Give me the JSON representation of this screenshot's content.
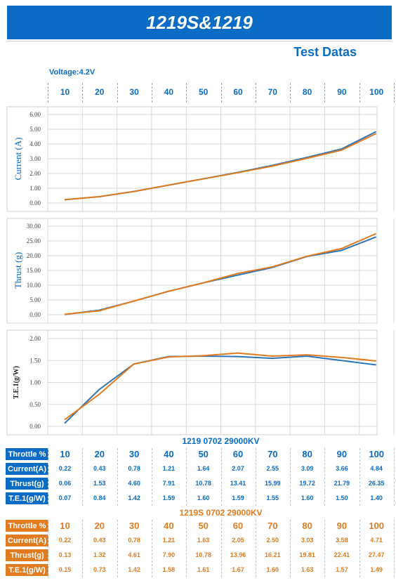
{
  "title": "1219S&1219",
  "subtitle": "Test Datas",
  "voltage_label": "Voltage:4.2V",
  "colors": {
    "accent": "#0a6cc4",
    "series1": "#2e75b6",
    "series2": "#e07b20",
    "grid": "#d9d9d9"
  },
  "throttle_ticks": [
    "10",
    "20",
    "30",
    "40",
    "50",
    "60",
    "70",
    "80",
    "90",
    "100"
  ],
  "chart_data": [
    {
      "type": "line",
      "ylabel": "Current (A)",
      "yticks": [
        "6.00",
        "5.00",
        "4.00",
        "3.00",
        "2.00",
        "1.00",
        "0.00"
      ],
      "ylim": [
        0,
        6
      ],
      "x": [
        10,
        20,
        30,
        40,
        50,
        60,
        70,
        80,
        90,
        100
      ],
      "series": [
        {
          "values": [
            0.22,
            0.43,
            0.78,
            1.21,
            1.64,
            2.07,
            2.55,
            3.09,
            3.66,
            4.84
          ]
        },
        {
          "values": [
            0.22,
            0.43,
            0.78,
            1.21,
            1.63,
            2.05,
            2.5,
            3.03,
            3.58,
            4.71
          ]
        }
      ]
    },
    {
      "type": "line",
      "ylabel": "Thrust (g)",
      "yticks": [
        "30.00",
        "25.00",
        "20.00",
        "15.00",
        "10.00",
        "5.00",
        "0.00"
      ],
      "ylim": [
        0,
        30
      ],
      "x": [
        10,
        20,
        30,
        40,
        50,
        60,
        70,
        80,
        90,
        100
      ],
      "series": [
        {
          "values": [
            0.06,
            1.53,
            4.6,
            7.91,
            10.78,
            13.41,
            15.99,
            19.72,
            21.79,
            26.35
          ]
        },
        {
          "values": [
            0.13,
            1.32,
            4.61,
            7.9,
            10.78,
            13.96,
            16.21,
            19.81,
            22.41,
            27.47
          ]
        }
      ]
    },
    {
      "type": "line",
      "ylabel": "T.E.1(g/W)",
      "yticks": [
        "2.00",
        "1.50",
        "1.00",
        "0.50",
        "0.00"
      ],
      "ylim": [
        0,
        2
      ],
      "x": [
        10,
        20,
        30,
        40,
        50,
        60,
        70,
        80,
        90,
        100
      ],
      "series": [
        {
          "values": [
            0.07,
            0.84,
            1.42,
            1.59,
            1.6,
            1.59,
            1.55,
            1.6,
            1.5,
            1.4
          ]
        },
        {
          "values": [
            0.15,
            0.73,
            1.42,
            1.58,
            1.61,
            1.67,
            1.6,
            1.63,
            1.57,
            1.49
          ]
        }
      ]
    }
  ],
  "tables": [
    {
      "title": "1219 0702 29000KV",
      "rows": [
        {
          "label": "Throttle %",
          "values": [
            "10",
            "20",
            "30",
            "40",
            "50",
            "60",
            "70",
            "80",
            "90",
            "100"
          ]
        },
        {
          "label": "Current(A)",
          "values": [
            "0.22",
            "0.43",
            "0.78",
            "1.21",
            "1.64",
            "2.07",
            "2.55",
            "3.09",
            "3.66",
            "4.84"
          ]
        },
        {
          "label": "Thrust(g)",
          "values": [
            "0.06",
            "1.53",
            "4.60",
            "7.91",
            "10.78",
            "13.41",
            "15.99",
            "19.72",
            "21.79",
            "26.35"
          ]
        },
        {
          "label": "T.E.1(g/W)",
          "values": [
            "0.07",
            "0.84",
            "1.42",
            "1.59",
            "1.60",
            "1.59",
            "1.55",
            "1.60",
            "1.50",
            "1.40"
          ]
        }
      ]
    },
    {
      "title": "1219S 0702 29000KV",
      "rows": [
        {
          "label": "Throttle %",
          "values": [
            "10",
            "20",
            "30",
            "40",
            "50",
            "60",
            "70",
            "80",
            "90",
            "100"
          ]
        },
        {
          "label": "Current(A)",
          "values": [
            "0.22",
            "0.43",
            "0.78",
            "1.21",
            "1.63",
            "2.05",
            "2.50",
            "3.03",
            "3.58",
            "4.71"
          ]
        },
        {
          "label": "Thrust(g)",
          "values": [
            "0.13",
            "1.32",
            "4.61",
            "7.90",
            "10.78",
            "13.96",
            "16.21",
            "19.81",
            "22.41",
            "27.47"
          ]
        },
        {
          "label": "T.E.1(g/W)",
          "values": [
            "0.15",
            "0.73",
            "1.42",
            "1.58",
            "1.61",
            "1.67",
            "1.60",
            "1.63",
            "1.57",
            "1.49"
          ]
        }
      ]
    }
  ]
}
